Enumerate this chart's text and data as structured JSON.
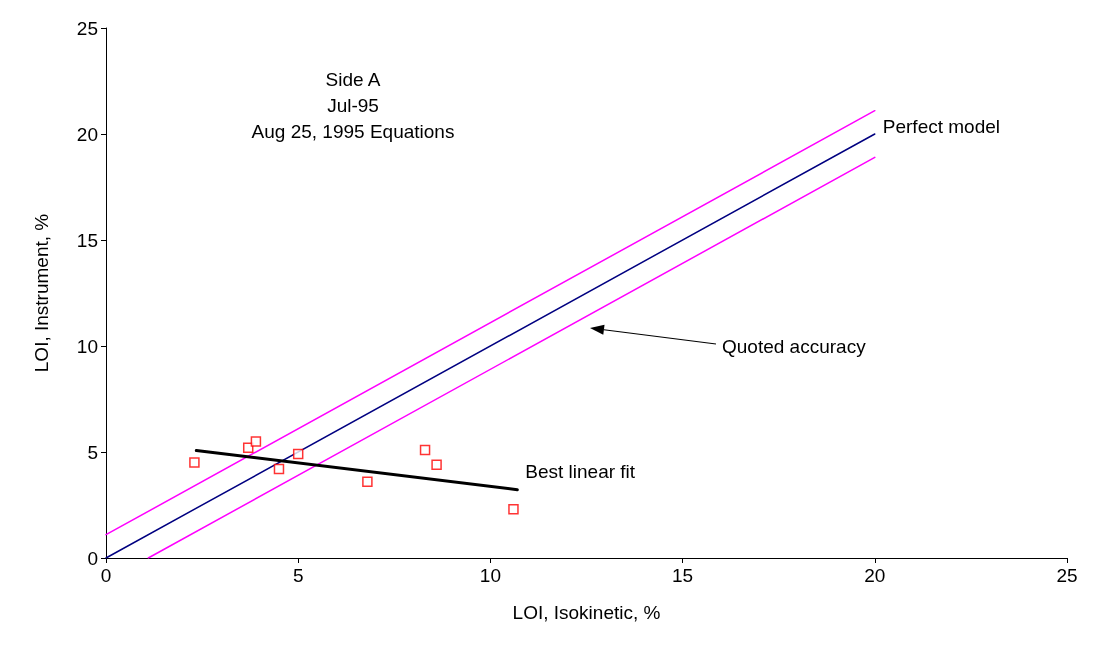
{
  "chart_data": {
    "type": "scatter",
    "xlabel": "LOI, Isokinetic, %",
    "ylabel": "LOI, Instrument, %",
    "xlim": [
      0,
      25
    ],
    "ylim": [
      0,
      25
    ],
    "xticks": [
      0,
      5,
      10,
      15,
      20,
      25
    ],
    "yticks": [
      0,
      5,
      10,
      15,
      20,
      25
    ],
    "grid": false,
    "series": [
      {
        "type": "line",
        "color": "#ff00ff",
        "marker": "none",
        "x": [
          0,
          20
        ],
        "values": [
          1.1,
          21.1
        ]
      },
      {
        "type": "line",
        "color": "#ff00ff",
        "marker": "none",
        "x": [
          1.1,
          20
        ],
        "values": [
          0,
          18.9
        ]
      },
      {
        "type": "line",
        "color": "#000080",
        "marker": "none",
        "x": [
          0,
          20
        ],
        "values": [
          0,
          20
        ]
      },
      {
        "type": "line",
        "color": "#000000",
        "marker": "none",
        "x": [
          2.35,
          10.7
        ],
        "values": [
          5.07,
          3.22
        ]
      },
      {
        "color": "#ff0000",
        "marker": "square",
        "x": [
          2.3,
          3.7,
          3.9,
          4.5,
          5.0,
          6.8,
          8.3,
          8.6,
          10.6
        ],
        "values": [
          4.5,
          5.2,
          5.5,
          4.2,
          4.9,
          3.6,
          5.1,
          4.4,
          2.3
        ]
      }
    ],
    "annotations": [
      "Side A",
      "Jul-95",
      "Aug 25, 1995 Equations",
      {
        "text": "Perfect model",
        "x": 20,
        "y": 20
      },
      "Quoted accuracy",
      {
        "text": "Best linear fit",
        "x": 10.7,
        "y": 3.22
      }
    ]
  }
}
